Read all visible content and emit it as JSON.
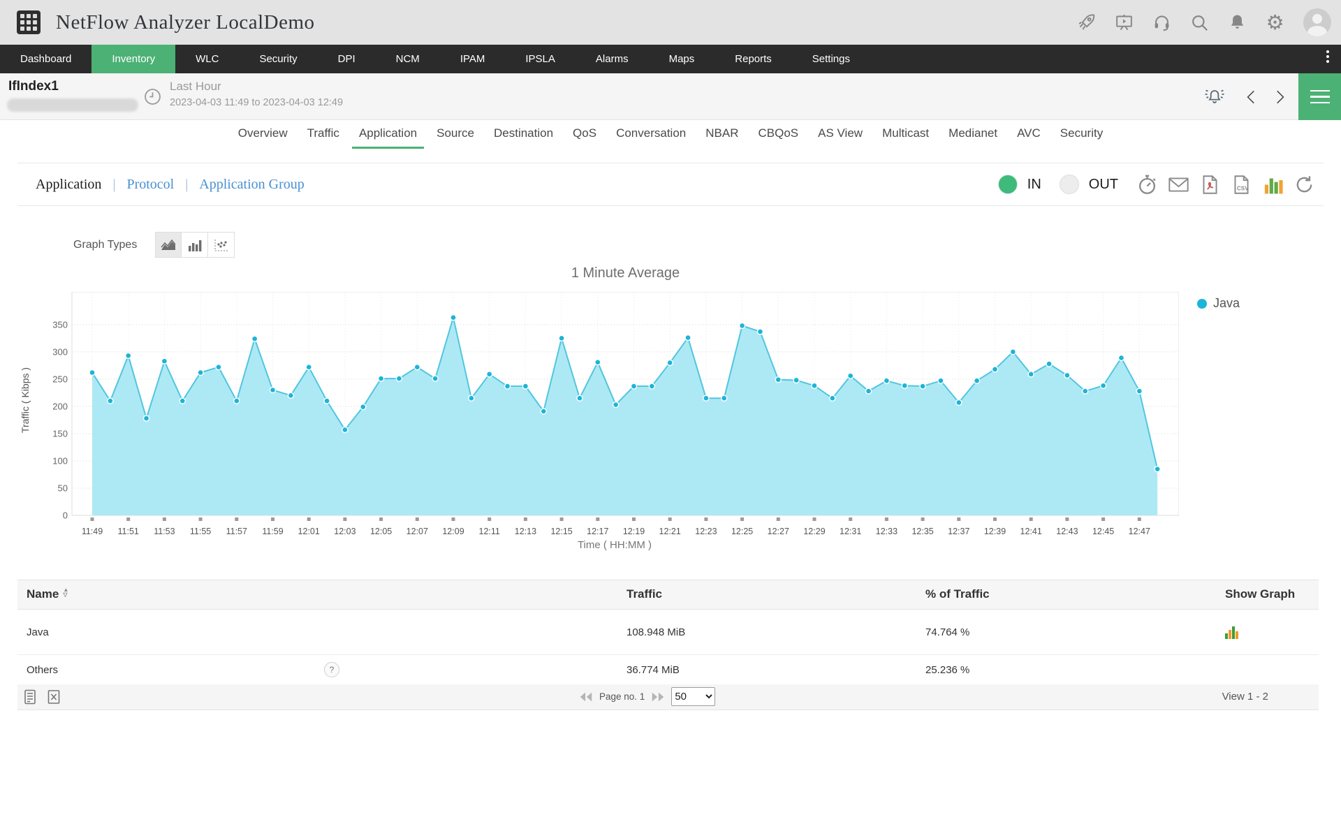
{
  "header": {
    "title": "NetFlow Analyzer LocalDemo",
    "icons": [
      "app-grid",
      "launch-rocket",
      "demo-presentation",
      "support-headset",
      "search",
      "notifications-bell",
      "settings-gear",
      "user-avatar"
    ]
  },
  "nav": {
    "items": [
      {
        "label": "Dashboard",
        "active": false
      },
      {
        "label": "Inventory",
        "active": true
      },
      {
        "label": "WLC",
        "active": false
      },
      {
        "label": "Security",
        "active": false
      },
      {
        "label": "DPI",
        "active": false
      },
      {
        "label": "NCM",
        "active": false
      },
      {
        "label": "IPAM",
        "active": false
      },
      {
        "label": "IPSLA",
        "active": false
      },
      {
        "label": "Alarms",
        "active": false
      },
      {
        "label": "Maps",
        "active": false
      },
      {
        "label": "Reports",
        "active": false
      },
      {
        "label": "Settings",
        "active": false
      }
    ]
  },
  "subheader": {
    "interface_name": "IfIndex1",
    "period_label": "Last Hour",
    "period_range": "2023-04-03 11:49 to 2023-04-03 12:49",
    "right_icons": [
      "alarm-bell",
      "chevron-left",
      "chevron-right",
      "menu-hamburger"
    ]
  },
  "tabs": {
    "items": [
      "Overview",
      "Traffic",
      "Application",
      "Source",
      "Destination",
      "QoS",
      "Conversation",
      "NBAR",
      "CBQoS",
      "AS View",
      "Multicast",
      "Medianet",
      "AVC",
      "Security"
    ],
    "active": "Application"
  },
  "toolbar": {
    "views": [
      {
        "label": "Application",
        "active": true
      },
      {
        "label": "Protocol",
        "active": false
      },
      {
        "label": "Application Group",
        "active": false
      }
    ],
    "in_label": "IN",
    "out_label": "OUT",
    "selected_direction": "IN",
    "icons": [
      "schedule-stopwatch",
      "email-envelope",
      "export-pdf",
      "export-csv",
      "bar-chart",
      "refresh"
    ]
  },
  "graph_types": {
    "label": "Graph Types",
    "options": [
      "area",
      "bar",
      "scatter"
    ],
    "selected": "area"
  },
  "chart_data": {
    "type": "area",
    "title": "1 Minute Average",
    "xlabel": "Time ( HH:MM )",
    "ylabel": "Traffic ( Kibps )",
    "ylim": [
      0,
      410
    ],
    "yticks": [
      0,
      50,
      100,
      150,
      200,
      250,
      300,
      350
    ],
    "grid": true,
    "legend_position": "right",
    "x_tick_labels": [
      "11:49",
      "11:51",
      "11:53",
      "11:55",
      "11:57",
      "11:59",
      "12:01",
      "12:03",
      "12:05",
      "12:07",
      "12:09",
      "12:11",
      "12:13",
      "12:15",
      "12:17",
      "12:19",
      "12:21",
      "12:23",
      "12:25",
      "12:27",
      "12:29",
      "12:31",
      "12:33",
      "12:35",
      "12:37",
      "12:39",
      "12:41",
      "12:43",
      "12:45",
      "12:47"
    ],
    "x": [
      "11:49",
      "11:50",
      "11:51",
      "11:52",
      "11:53",
      "11:54",
      "11:55",
      "11:56",
      "11:57",
      "11:58",
      "11:59",
      "12:00",
      "12:01",
      "12:02",
      "12:03",
      "12:04",
      "12:05",
      "12:06",
      "12:07",
      "12:08",
      "12:09",
      "12:10",
      "12:11",
      "12:12",
      "12:13",
      "12:14",
      "12:15",
      "12:16",
      "12:17",
      "12:18",
      "12:19",
      "12:20",
      "12:21",
      "12:22",
      "12:23",
      "12:24",
      "12:25",
      "12:26",
      "12:27",
      "12:28",
      "12:29",
      "12:30",
      "12:31",
      "12:32",
      "12:33",
      "12:34",
      "12:35",
      "12:36",
      "12:37",
      "12:38",
      "12:39",
      "12:40",
      "12:41",
      "12:42",
      "12:43",
      "12:44",
      "12:45",
      "12:46",
      "12:47",
      "12:48"
    ],
    "series": [
      {
        "name": "Java",
        "line_color": "#50c6e0",
        "fill_color": "#ade9f4",
        "marker_color": "#1db4d8",
        "values": [
          262,
          210,
          293,
          178,
          283,
          210,
          262,
          272,
          210,
          324,
          230,
          220,
          272,
          210,
          157,
          199,
          251,
          251,
          272,
          251,
          363,
          215,
          259,
          237,
          237,
          191,
          325,
          215,
          281,
          203,
          237,
          237,
          280,
          326,
          215,
          215,
          348,
          337,
          249,
          248,
          238,
          215,
          256,
          228,
          247,
          238,
          237,
          247,
          207,
          247,
          268,
          300,
          259,
          278,
          257,
          228,
          238,
          289,
          228,
          85
        ]
      }
    ]
  },
  "table": {
    "columns": [
      "Name",
      "Traffic",
      "% of Traffic",
      "Show Graph"
    ],
    "rows": [
      {
        "name": "Java",
        "traffic": "108.948 MiB",
        "percent": "74.764 %",
        "show_graph": true,
        "help": ""
      },
      {
        "name": "Others",
        "traffic": "36.774 MiB",
        "percent": "25.236 %",
        "show_graph": false,
        "help": "?"
      }
    ]
  },
  "footer": {
    "page_label": "Page no. 1",
    "page_size": "50",
    "page_size_options": [
      "50"
    ],
    "view_label": "View 1 - 2",
    "icons": [
      "report-table",
      "export-excel",
      "first-page",
      "last-page"
    ]
  },
  "colors": {
    "accent_green": "#4cb175",
    "link_blue": "#4a90d2",
    "nav_dark": "#2b2b2b",
    "topbar_gray": "#e3e3e3"
  }
}
